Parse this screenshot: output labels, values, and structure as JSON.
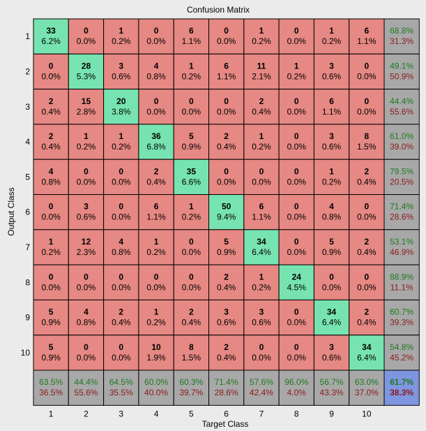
{
  "chart_data": {
    "type": "heatmap",
    "title": "Confusion Matrix",
    "xlabel": "Target Class",
    "ylabel": "Output Class",
    "x_categories": [
      "1",
      "2",
      "3",
      "4",
      "5",
      "6",
      "7",
      "8",
      "9",
      "10"
    ],
    "y_categories": [
      "1",
      "2",
      "3",
      "4",
      "5",
      "6",
      "7",
      "8",
      "9",
      "10"
    ],
    "counts": [
      [
        33,
        0,
        1,
        0,
        6,
        0,
        1,
        0,
        1,
        6
      ],
      [
        0,
        28,
        3,
        4,
        1,
        6,
        11,
        1,
        3,
        0
      ],
      [
        2,
        15,
        20,
        0,
        0,
        0,
        2,
        0,
        6,
        0
      ],
      [
        2,
        1,
        1,
        36,
        5,
        2,
        1,
        0,
        3,
        8
      ],
      [
        4,
        0,
        0,
        2,
        35,
        0,
        0,
        0,
        1,
        2
      ],
      [
        0,
        3,
        0,
        6,
        1,
        50,
        6,
        0,
        4,
        0
      ],
      [
        1,
        12,
        4,
        1,
        0,
        5,
        34,
        0,
        5,
        2
      ],
      [
        0,
        0,
        0,
        0,
        0,
        2,
        1,
        24,
        0,
        0
      ],
      [
        5,
        4,
        2,
        1,
        2,
        3,
        3,
        0,
        34,
        2
      ],
      [
        5,
        0,
        0,
        10,
        8,
        2,
        0,
        0,
        3,
        34
      ]
    ],
    "percents": [
      [
        "6.2%",
        "0.0%",
        "0.2%",
        "0.0%",
        "1.1%",
        "0.0%",
        "0.2%",
        "0.0%",
        "0.2%",
        "1.1%"
      ],
      [
        "0.0%",
        "5.3%",
        "0.6%",
        "0.8%",
        "0.2%",
        "1.1%",
        "2.1%",
        "0.2%",
        "0.6%",
        "0.0%"
      ],
      [
        "0.4%",
        "2.8%",
        "3.8%",
        "0.0%",
        "0.0%",
        "0.0%",
        "0.4%",
        "0.0%",
        "1.1%",
        "0.0%"
      ],
      [
        "0.4%",
        "0.2%",
        "0.2%",
        "6.8%",
        "0.9%",
        "0.4%",
        "0.2%",
        "0.0%",
        "0.6%",
        "1.5%"
      ],
      [
        "0.8%",
        "0.0%",
        "0.0%",
        "0.4%",
        "6.6%",
        "0.0%",
        "0.0%",
        "0.0%",
        "0.2%",
        "0.4%"
      ],
      [
        "0.0%",
        "0.6%",
        "0.0%",
        "1.1%",
        "0.2%",
        "9.4%",
        "1.1%",
        "0.0%",
        "0.8%",
        "0.0%"
      ],
      [
        "0.2%",
        "2.3%",
        "0.8%",
        "0.2%",
        "0.0%",
        "0.9%",
        "6.4%",
        "0.0%",
        "0.9%",
        "0.4%"
      ],
      [
        "0.0%",
        "0.0%",
        "0.0%",
        "0.0%",
        "0.0%",
        "0.4%",
        "0.2%",
        "4.5%",
        "0.0%",
        "0.0%"
      ],
      [
        "0.9%",
        "0.8%",
        "0.4%",
        "0.2%",
        "0.4%",
        "0.6%",
        "0.6%",
        "0.0%",
        "6.4%",
        "0.4%"
      ],
      [
        "0.9%",
        "0.0%",
        "0.0%",
        "1.9%",
        "1.5%",
        "0.4%",
        "0.0%",
        "0.0%",
        "0.6%",
        "6.4%"
      ]
    ],
    "row_summary": [
      [
        "68.8%",
        "31.3%"
      ],
      [
        "49.1%",
        "50.9%"
      ],
      [
        "44.4%",
        "55.6%"
      ],
      [
        "61.0%",
        "39.0%"
      ],
      [
        "79.5%",
        "20.5%"
      ],
      [
        "71.4%",
        "28.6%"
      ],
      [
        "53.1%",
        "46.9%"
      ],
      [
        "88.9%",
        "11.1%"
      ],
      [
        "60.7%",
        "39.3%"
      ],
      [
        "54.8%",
        "45.2%"
      ]
    ],
    "col_summary": [
      [
        "63.5%",
        "36.5%"
      ],
      [
        "44.4%",
        "55.6%"
      ],
      [
        "64.5%",
        "35.5%"
      ],
      [
        "60.0%",
        "40.0%"
      ],
      [
        "60.3%",
        "39.7%"
      ],
      [
        "71.4%",
        "28.6%"
      ],
      [
        "57.6%",
        "42.4%"
      ],
      [
        "96.0%",
        "4.0%"
      ],
      [
        "56.7%",
        "43.3%"
      ],
      [
        "63.0%",
        "37.0%"
      ]
    ],
    "overall": [
      "61.7%",
      "38.3%"
    ],
    "colors": {
      "background": "#ebebeb",
      "diagonal": "#77e3b0",
      "off_diagonal": "#e68883",
      "summary": "#a8a8a8",
      "overall": "#7e95e0",
      "good_text": "#1e7a1e",
      "bad_text": "#8b1a1a"
    }
  }
}
